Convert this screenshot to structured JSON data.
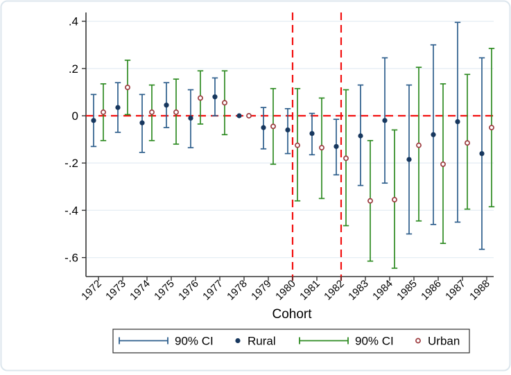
{
  "figure": {
    "background_color": "#ffffff",
    "border_color": "#dce6ed"
  },
  "chart_data": {
    "type": "scatter",
    "subtype": "coefficient-plot-with-error-bars",
    "title": "",
    "xlabel": "Cohort",
    "ylabel": "",
    "x_categories": [
      "1972",
      "1973",
      "1974",
      "1975",
      "1976",
      "1977",
      "1978",
      "1979",
      "1980",
      "1981",
      "1982",
      "1983",
      "1984",
      "1985",
      "1986",
      "1987",
      "1988"
    ],
    "y_ticks": [
      {
        "value": 0.4,
        "label": ".4"
      },
      {
        "value": 0.2,
        "label": ".2"
      },
      {
        "value": 0,
        "label": "0"
      },
      {
        "value": -0.2,
        "label": "-.2"
      },
      {
        "value": -0.4,
        "label": "-.4"
      },
      {
        "value": -0.6,
        "label": "-.6"
      }
    ],
    "ylim": [
      -0.7,
      0.45
    ],
    "grid": true,
    "gridline_color": "#e6eef4",
    "reference_lines": {
      "horizontal_y": 0,
      "vertical_x": [
        "1980",
        "1982"
      ],
      "color": "#f20f0f",
      "style": "dashed"
    },
    "series": [
      {
        "name": "Rural",
        "marker": "filled-circle",
        "marker_color": "#17375e",
        "ci_color": "#2d5e8c",
        "ci_level": "90% CI",
        "est": [
          -0.02,
          0.035,
          -0.03,
          0.045,
          -0.01,
          0.08,
          0,
          -0.05,
          -0.06,
          -0.075,
          -0.13,
          -0.085,
          -0.02,
          -0.185,
          -0.08,
          -0.025,
          -0.16
        ],
        "ci_low": [
          -0.13,
          -0.07,
          -0.155,
          -0.05,
          -0.135,
          0.0,
          0,
          -0.14,
          -0.16,
          -0.165,
          -0.25,
          -0.295,
          -0.285,
          -0.5,
          -0.46,
          -0.45,
          -0.565
        ],
        "ci_high": [
          0.09,
          0.14,
          0.09,
          0.14,
          0.11,
          0.16,
          0,
          0.035,
          0.03,
          0.01,
          -0.015,
          0.13,
          0.245,
          0.13,
          0.3,
          0.395,
          0.245
        ]
      },
      {
        "name": "Urban",
        "marker": "hollow-circle",
        "marker_color": "#9c3a3e",
        "ci_color": "#2e8b22",
        "ci_level": "90% CI",
        "est": [
          0.015,
          0.12,
          0.015,
          0.015,
          0.075,
          0.055,
          0,
          -0.045,
          -0.125,
          -0.135,
          -0.18,
          -0.36,
          -0.355,
          -0.125,
          -0.205,
          -0.115,
          -0.05
        ],
        "ci_low": [
          -0.105,
          0.005,
          -0.105,
          -0.12,
          -0.035,
          -0.08,
          0,
          -0.205,
          -0.36,
          -0.35,
          -0.465,
          -0.615,
          -0.645,
          -0.445,
          -0.54,
          -0.395,
          -0.385
        ],
        "ci_high": [
          0.135,
          0.235,
          0.13,
          0.155,
          0.19,
          0.19,
          0,
          0.115,
          0.115,
          0.075,
          0.11,
          -0.105,
          -0.06,
          0.205,
          0.135,
          0.175,
          0.285
        ]
      }
    ]
  },
  "legend": {
    "items": [
      {
        "type": "ci-sample",
        "color": "#2d5e8c",
        "label": "90% CI"
      },
      {
        "type": "filled-circle",
        "color": "#17375e",
        "label": "Rural"
      },
      {
        "type": "ci-sample",
        "color": "#2e8b22",
        "label": "90% CI"
      },
      {
        "type": "hollow-circle",
        "color": "#9c3a3e",
        "label": "Urban"
      }
    ]
  }
}
